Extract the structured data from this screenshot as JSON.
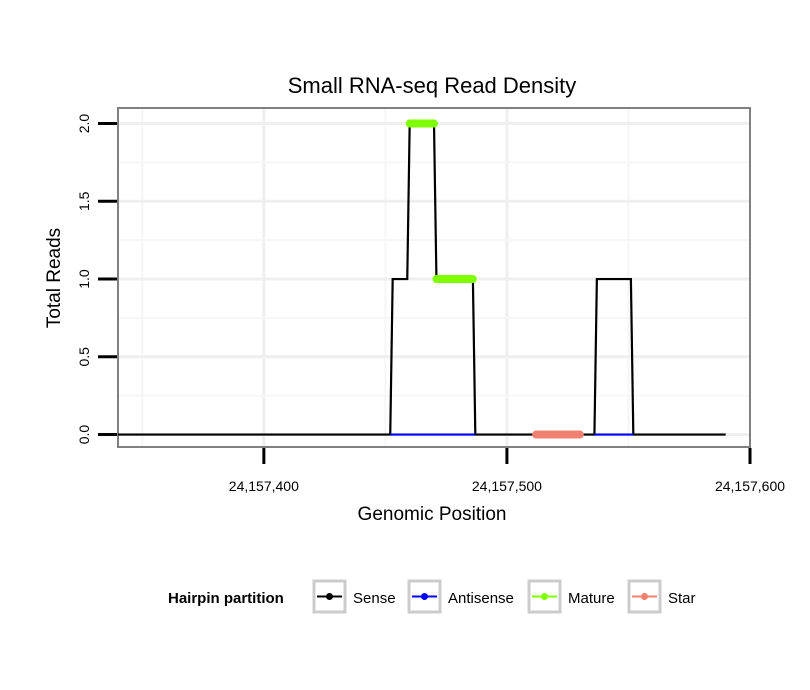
{
  "chart_data": {
    "type": "line",
    "title": "Small RNA-seq Read Density",
    "xlabel": "Genomic Position",
    "ylabel": "Total Reads",
    "xlim": [
      24157340,
      24157600
    ],
    "ylim": [
      -0.08,
      2.1
    ],
    "x_ticks": [
      24157400,
      24157500,
      24157600
    ],
    "x_tick_labels": [
      "24,157,400",
      "24,157,500",
      "24,157,600"
    ],
    "y_ticks": [
      0,
      0.5,
      1,
      1.5,
      2
    ],
    "y_tick_labels": [
      "0.0",
      "0.5",
      "1.0",
      "1.5",
      "2.0"
    ],
    "grid": true,
    "legend_position": "bottom",
    "legend_title": "Hairpin partition",
    "series": [
      {
        "name": "Sense",
        "color": "#000000",
        "points": [
          [
            24157340,
            0
          ],
          [
            24157452,
            0
          ],
          [
            24157453,
            1
          ],
          [
            24157459,
            1
          ],
          [
            24157460,
            2
          ],
          [
            24157470,
            2
          ],
          [
            24157471,
            1
          ],
          [
            24157486,
            1
          ],
          [
            24157487,
            0
          ],
          [
            24157536,
            0
          ],
          [
            24157537,
            1
          ],
          [
            24157551,
            1
          ],
          [
            24157552,
            0
          ],
          [
            24157590,
            0
          ]
        ]
      },
      {
        "name": "Antisense",
        "color": "#0000ff",
        "points": [
          [
            24157452,
            0
          ],
          [
            24157487,
            0
          ],
          [
            24157536,
            0
          ],
          [
            24157552,
            0
          ]
        ]
      },
      {
        "name": "Mature",
        "color": "#7fff00",
        "segments": [
          [
            24157460,
            24157470,
            2
          ],
          [
            24157471,
            24157486,
            1
          ]
        ]
      },
      {
        "name": "Star",
        "color": "#f08070",
        "segments": [
          [
            24157512,
            24157530,
            0
          ]
        ]
      }
    ]
  }
}
